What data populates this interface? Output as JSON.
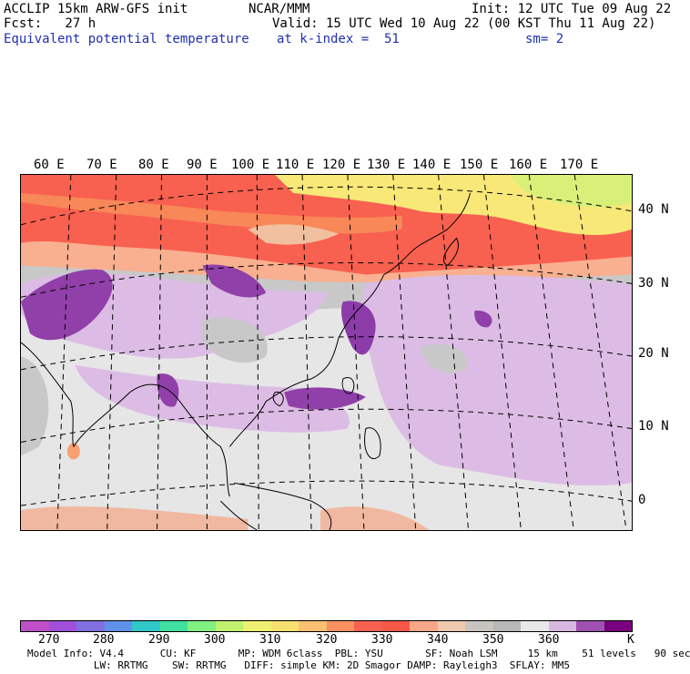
{
  "header": {
    "model_line": "ACCLIP 15km ARW-GFS init",
    "org": "NCAR/MMM",
    "init": "Init: 12 UTC Tue 09 Aug 22",
    "fcst": "Fcst:   27 h",
    "valid": "Valid: 15 UTC Wed 10 Aug 22 (00 KST Thu 11 Aug 22)",
    "field_name": "Equivalent potential temperature",
    "level": "at k-index =  51",
    "smoothing": "sm= 2"
  },
  "map": {
    "lon_labels": [
      "60 E",
      "70 E",
      "80 E",
      "90 E",
      "100 E",
      "110 E",
      "120 E",
      "130 E",
      "140 E",
      "150 E",
      "160 E",
      "170 E"
    ],
    "lat_labels": [
      "40 N",
      "30 N",
      "20 N",
      "10 N",
      "0"
    ]
  },
  "colorbar": {
    "colors": [
      "#c050c8",
      "#a050d8",
      "#8070e0",
      "#6090e8",
      "#30c8c8",
      "#40e0a0",
      "#80f080",
      "#c0f070",
      "#f0f070",
      "#f8e070",
      "#f8c070",
      "#f89060",
      "#f86050",
      "#f85848",
      "#f8a888",
      "#f0c8b0",
      "#c8c4c0",
      "#b8b8b8",
      "#e8e8e8",
      "#d8b8e0",
      "#a050b0",
      "#780080"
    ],
    "labels": [
      "270",
      "280",
      "290",
      "300",
      "310",
      "320",
      "330",
      "340",
      "350",
      "360",
      "K"
    ]
  },
  "footer": {
    "line1": "Model Info: V4.4      CU: KF       MP: WDM 6class  PBL: YSU       SF: Noah LSM     15 km    51 levels   90 sec",
    "line2": "           LW: RRTMG    SW: RRTMG   DIFF: simple KM: 2D Smagor DAMP: Rayleigh3  SFLAY: MM5"
  }
}
